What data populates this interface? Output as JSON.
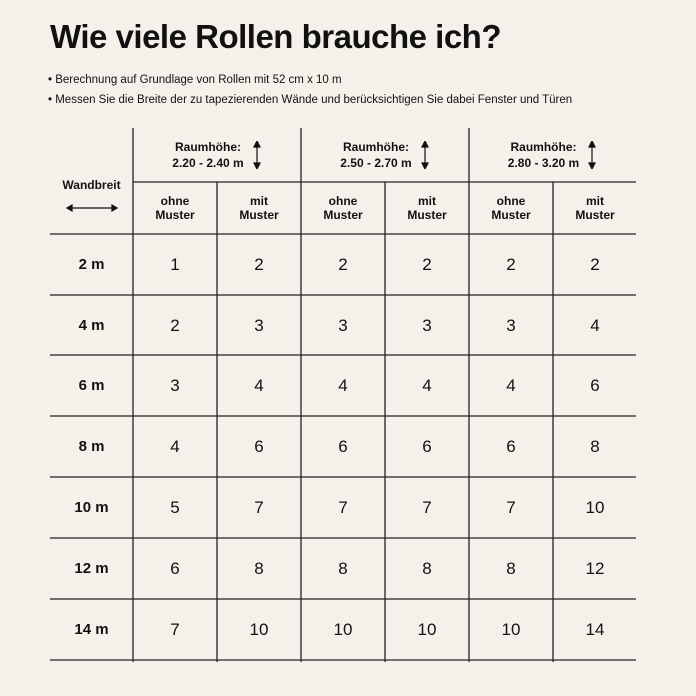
{
  "title": "Wie viele Rollen brauche ich?",
  "notes": [
    "• Berechnung auf Grundlage von Rollen mit 52 cm x 10 m",
    "• Messen Sie die Breite der zu tapezierenden Wände und berücksichtigen Sie dabei Fenster und Türen"
  ],
  "table": {
    "row_header": "Wandbreit",
    "groups": [
      {
        "label": "Raumhöhe:",
        "range": "2.20 - 2.40 m"
      },
      {
        "label": "Raumhöhe:",
        "range": "2.50 - 2.70 m"
      },
      {
        "label": "Raumhöhe:",
        "range": "2.80 - 3.20 m"
      }
    ],
    "subheaders": [
      [
        "ohne",
        "Muster"
      ],
      [
        "mit",
        "Muster"
      ],
      [
        "ohne",
        "Muster"
      ],
      [
        "mit",
        "Muster"
      ],
      [
        "ohne",
        "Muster"
      ],
      [
        "mit",
        "Muster"
      ]
    ],
    "rows": [
      {
        "width": "2 m",
        "values": [
          "1",
          "2",
          "2",
          "2",
          "2",
          "2"
        ]
      },
      {
        "width": "4 m",
        "values": [
          "2",
          "3",
          "3",
          "3",
          "3",
          "4"
        ]
      },
      {
        "width": "6 m",
        "values": [
          "3",
          "4",
          "4",
          "4",
          "4",
          "6"
        ]
      },
      {
        "width": "8 m",
        "values": [
          "4",
          "6",
          "6",
          "6",
          "6",
          "8"
        ]
      },
      {
        "width": "10 m",
        "values": [
          "5",
          "7",
          "7",
          "7",
          "7",
          "10"
        ]
      },
      {
        "width": "12 m",
        "values": [
          "6",
          "8",
          "8",
          "8",
          "8",
          "12"
        ]
      },
      {
        "width": "14 m",
        "values": [
          "7",
          "10",
          "10",
          "10",
          "10",
          "14"
        ]
      }
    ]
  },
  "colors": {
    "background": "#f5f1ea",
    "text": "#111111",
    "lines": "#222222"
  }
}
